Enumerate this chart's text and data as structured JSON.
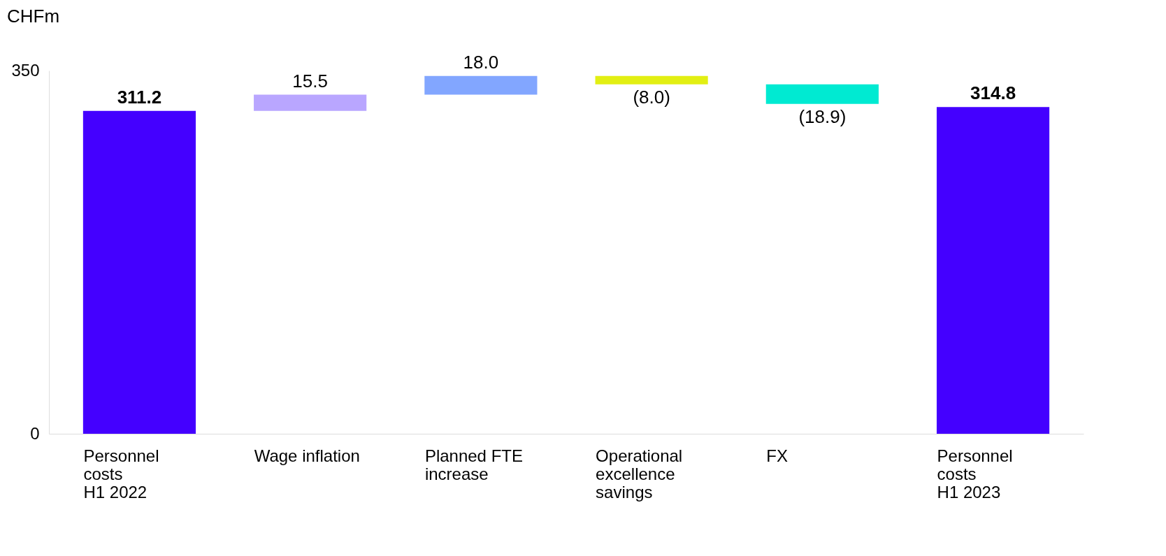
{
  "chart_data": {
    "type": "bar",
    "ylabel": "CHFm",
    "categories": [
      "Personnel\ncosts\nH1 2022",
      "Wage inflation",
      "Planned FTE\nincrease",
      "Operational\nexcellence\nsavings",
      "FX",
      "Personnel\ncosts\nH1 2023"
    ],
    "values": [
      311.2,
      15.5,
      18.0,
      -8.0,
      -18.9,
      314.8
    ],
    "base": [
      0,
      311.2,
      326.7,
      344.7,
      336.7,
      0
    ],
    "colors": [
      "#4400ff",
      "#b9a6ff",
      "#82a6ff",
      "#e2ef13",
      "#00ead2",
      "#4400ff"
    ],
    "value_labels": [
      "311.2",
      "15.5",
      "18.0",
      "(8.0)",
      "(18.9)",
      "314.8"
    ],
    "ylim": [
      0,
      350
    ],
    "yticks": [
      0,
      350
    ],
    "grid": false
  }
}
